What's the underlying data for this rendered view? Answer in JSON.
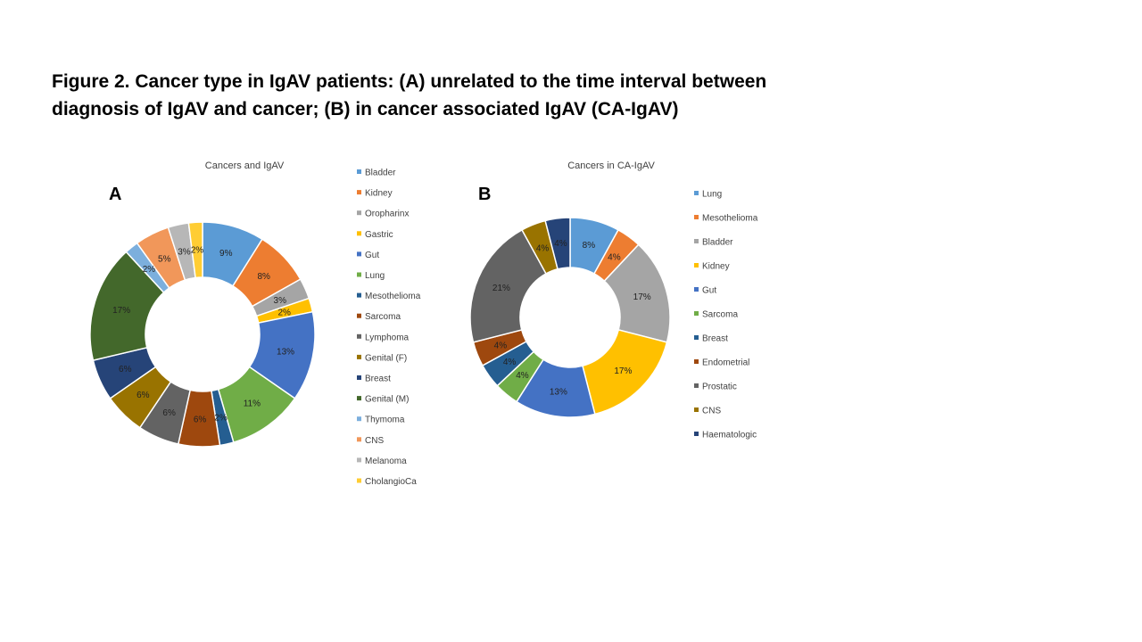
{
  "caption": {
    "line1": "Figure 2.  Cancer type in IgAV patients: (A) unrelated to the time interval between",
    "line2": "diagnosis of IgAV and cancer; (B) in cancer associated IgAV (CA-IgAV)"
  },
  "chart_data": [
    {
      "type": "pie",
      "variant": "donut",
      "panel": "A",
      "title": "Cancers and IgAV",
      "legend_position": "right",
      "categories": [
        "Bladder",
        "Kidney",
        "Oropharinx",
        "Gastric",
        "Gut",
        "Lung",
        "Mesothelioma",
        "Sarcoma",
        "Lymphoma",
        "Genital (F)",
        "Breast",
        "Genital (M)",
        "Thymoma",
        "CNS",
        "Melanoma",
        "CholangioCa"
      ],
      "values": [
        9,
        8,
        3,
        2,
        13,
        11,
        2,
        6,
        6,
        6,
        6,
        17,
        2,
        5,
        3,
        2
      ],
      "labels": [
        "9%",
        "8%",
        "3%",
        "2%",
        "13%",
        "11%",
        "2%",
        "6%",
        "6%",
        "6%",
        "6%",
        "17%",
        "2%",
        "5%",
        "3%",
        "2%"
      ],
      "colors": [
        "#5B9BD5",
        "#ED7D31",
        "#A5A5A5",
        "#FFC000",
        "#4472C4",
        "#70AD47",
        "#255E91",
        "#9E480E",
        "#636363",
        "#997300",
        "#264478",
        "#43682B",
        "#7CAFDD",
        "#F1975A",
        "#B7B7B7",
        "#FFCD33"
      ]
    },
    {
      "type": "pie",
      "variant": "donut",
      "panel": "B",
      "title": "Cancers in CA-IgAV",
      "legend_position": "right",
      "categories": [
        "Lung",
        "Mesothelioma",
        "Bladder",
        "Kidney",
        "Gut",
        "Sarcoma",
        "Breast",
        "Endometrial",
        "Prostatic",
        "CNS",
        "Haematologic"
      ],
      "values": [
        8,
        4,
        17,
        17,
        13,
        4,
        4,
        4,
        21,
        4,
        4
      ],
      "labels": [
        "8%",
        "4%",
        "17%",
        "17%",
        "13%",
        "4%",
        "4%",
        "4%",
        "21%",
        "4%",
        "4%"
      ],
      "colors": [
        "#5B9BD5",
        "#ED7D31",
        "#A5A5A5",
        "#FFC000",
        "#4472C4",
        "#70AD47",
        "#255E91",
        "#9E480E",
        "#636363",
        "#997300",
        "#264478"
      ]
    }
  ]
}
